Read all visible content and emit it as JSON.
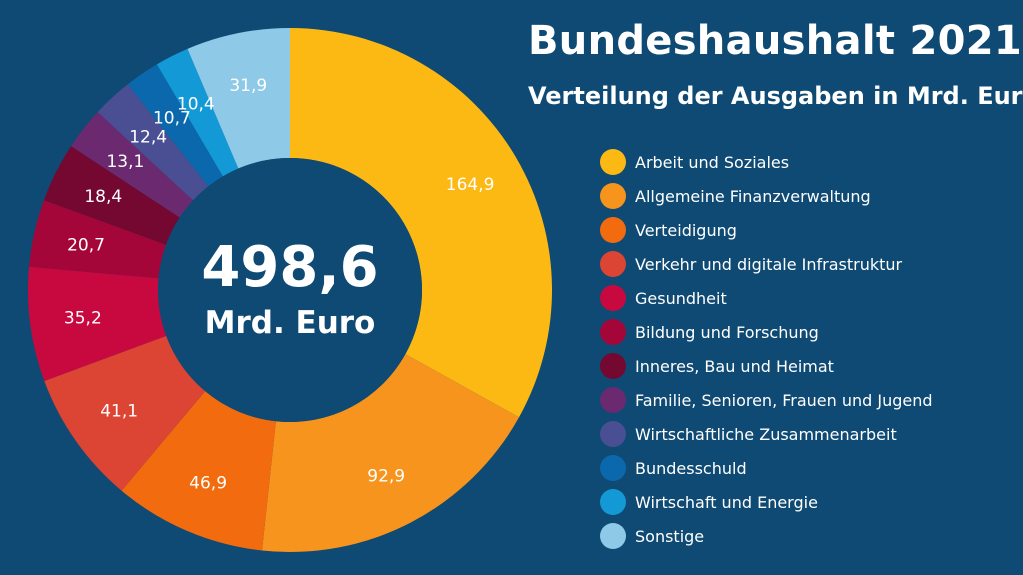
{
  "chart_data": {
    "type": "pie",
    "title": "Bundeshaushalt 2021",
    "subtitle": "Verteilung der Ausgaben in Mrd. Euro",
    "total": {
      "value": "498,6",
      "unit": "Mrd. Euro"
    },
    "legend_position": "right",
    "categories": [
      "Arbeit und Soziales",
      "Allgemeine Finanzverwaltung",
      "Verteidigung",
      "Verkehr und digitale Infrastruktur",
      "Gesundheit",
      "Bildung und Forschung",
      "Inneres, Bau und Heimat",
      "Familie, Senioren, Frauen und Jugend",
      "Wirtschaftliche Zusammenarbeit",
      "Bundesschuld",
      "Wirtschaft und Energie",
      "Sonstige"
    ],
    "values": [
      164.9,
      92.9,
      46.9,
      41.1,
      35.2,
      20.7,
      18.4,
      13.1,
      12.4,
      10.7,
      10.4,
      31.9
    ],
    "value_labels": [
      "164,9",
      "92,9",
      "46,9",
      "41,1",
      "35,2",
      "20,7",
      "18,4",
      "13,1",
      "12,4",
      "10,7",
      "10,4",
      "31,9"
    ],
    "colors": [
      "#fdb913",
      "#f7941d",
      "#f26b0f",
      "#dc4433",
      "#c8093f",
      "#a5063a",
      "#740831",
      "#6b2a6f",
      "#4a4f93",
      "#0b68ad",
      "#139ad6",
      "#8ecae8"
    ]
  }
}
